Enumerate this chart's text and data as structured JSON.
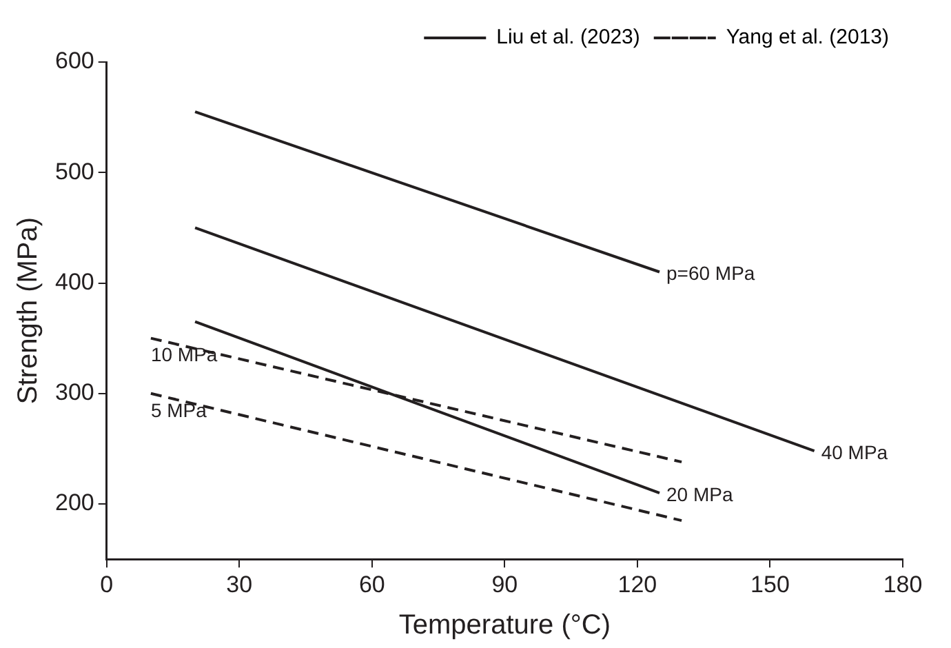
{
  "chart_data": {
    "type": "line",
    "xlabel": "Temperature (°C)",
    "ylabel": "Strength (MPa)",
    "xlim": [
      0,
      180
    ],
    "xticks": [
      0,
      30,
      60,
      90,
      120,
      150,
      180
    ],
    "ylim": [
      150,
      600
    ],
    "yticks": [
      200,
      300,
      400,
      500,
      600
    ],
    "grid": false,
    "legend": "top right",
    "marker": "none",
    "series": [
      {
        "name": "Liu et al. (2023)",
        "color": "#231f20",
        "line_style": "solid",
        "x": [
          20,
          125
        ],
        "values": [
          555,
          410
        ]
      },
      {
        "color": "#231f20",
        "line_style": "solid",
        "x": [
          20,
          160
        ],
        "values": [
          450,
          248
        ]
      },
      {
        "color": "#231f20",
        "line_style": "solid",
        "x": [
          20,
          125
        ],
        "values": [
          365,
          210
        ]
      },
      {
        "name": "Yang et al. (2013)",
        "color": "#231f20",
        "line_style": "dashed",
        "x": [
          10,
          130
        ],
        "values": [
          350,
          238
        ]
      },
      {
        "color": "#231f20",
        "line_style": "dashed",
        "x": [
          10,
          130
        ],
        "values": [
          300,
          185
        ]
      }
    ],
    "annotations": [
      {
        "text": "p=60 MPa",
        "x": 125,
        "y": 410
      },
      {
        "text": "40 MPa",
        "x": 160,
        "y": 248
      },
      {
        "text": "20 MPa",
        "x": 125,
        "y": 210
      },
      {
        "text": "10 MPa",
        "x": 10,
        "y": 350
      },
      {
        "text": "5 MPa",
        "x": 10,
        "y": 300
      }
    ]
  }
}
